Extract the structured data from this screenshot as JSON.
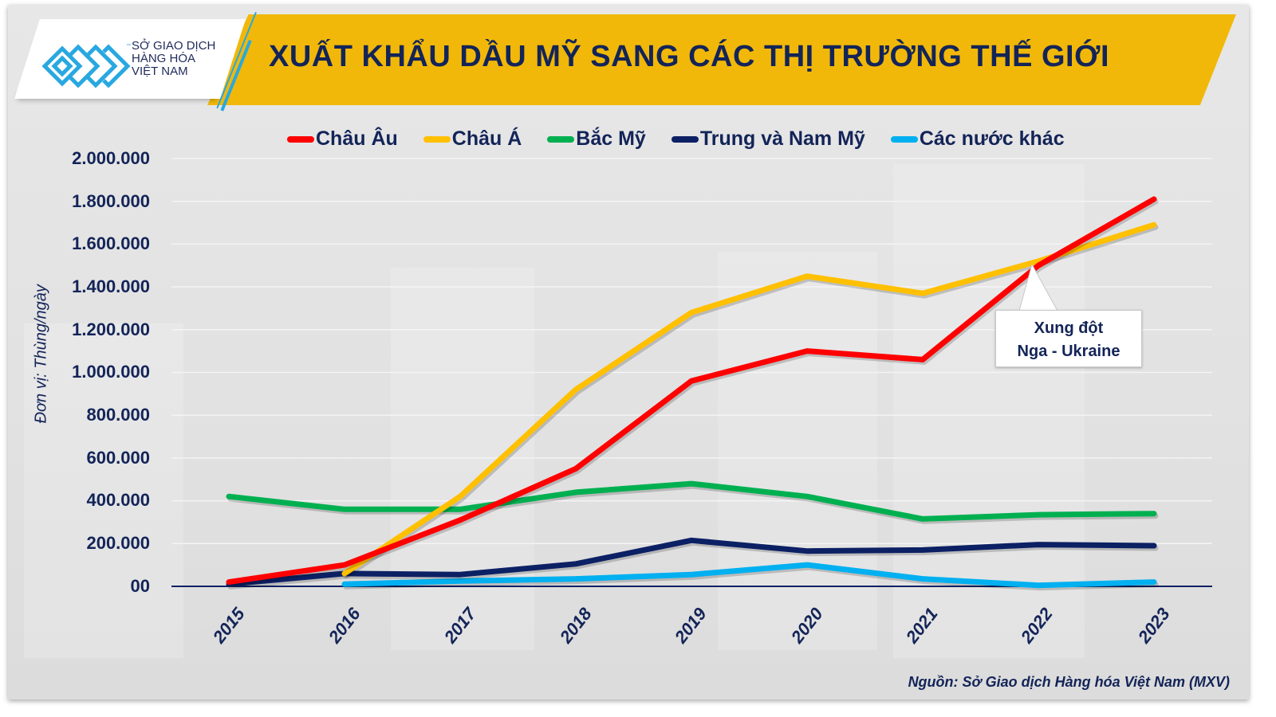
{
  "header": {
    "logo": {
      "icon": "mxv-logo-icon",
      "trademark": "™",
      "lines": [
        "SỞ GIAO DỊCH",
        "HÀNG HÓA",
        "VIỆT NAM"
      ],
      "color": "#29a8e0"
    },
    "title": "XUẤT KHẨU DẦU MỸ SANG CÁC THỊ TRƯỜNG THẾ GIỚI",
    "band_color": "#f1b809"
  },
  "legend": [
    {
      "label": "Châu Âu",
      "color": "#ff0000"
    },
    {
      "label": "Châu Á",
      "color": "#ffc000"
    },
    {
      "label": "Bắc Mỹ",
      "color": "#00b050"
    },
    {
      "label": "Trung và Nam Mỹ",
      "color": "#0c2064"
    },
    {
      "label": "Các nước khác",
      "color": "#00b0f0"
    }
  ],
  "axes": {
    "ylabel": "Đơn vị: Thùng/ngày",
    "yticks": [
      "2.000.000",
      "1.800.000",
      "1.600.000",
      "1.400.000",
      "1.200.000",
      "1.000.000",
      "800.000",
      "600.000",
      "400.000",
      "200.000",
      "00"
    ],
    "xticks": [
      "2015",
      "2016",
      "2017",
      "2018",
      "2019",
      "2020",
      "2021",
      "2022",
      "2023"
    ]
  },
  "annotation": {
    "line1": "Xung đột",
    "line2": "Nga - Ukraine",
    "points_to": "Châu Âu 2022"
  },
  "source": "Nguồn: Sở Giao dịch Hàng hóa Việt Nam (MXV)",
  "chart_data": {
    "type": "line",
    "title": "XUẤT KHẨU DẦU MỸ SANG CÁC THỊ TRƯỜNG THẾ GIỚI",
    "xlabel": "",
    "ylabel": "Đơn vị: Thùng/ngày",
    "ylim": [
      0,
      2000000
    ],
    "grid": true,
    "legend_position": "top",
    "categories": [
      "2015",
      "2016",
      "2017",
      "2018",
      "2019",
      "2020",
      "2021",
      "2022",
      "2023"
    ],
    "series": [
      {
        "name": "Châu Âu",
        "color": "#ff0000",
        "values": [
          20000,
          100000,
          310000,
          550000,
          960000,
          1100000,
          1060000,
          1500000,
          1810000
        ]
      },
      {
        "name": "Châu Á",
        "color": "#ffc000",
        "values": [
          null,
          60000,
          420000,
          920000,
          1280000,
          1450000,
          1370000,
          1520000,
          1690000
        ]
      },
      {
        "name": "Bắc Mỹ",
        "color": "#00b050",
        "values": [
          420000,
          360000,
          360000,
          440000,
          480000,
          420000,
          315000,
          335000,
          340000
        ]
      },
      {
        "name": "Trung và Nam Mỹ",
        "color": "#0c2064",
        "values": [
          10000,
          60000,
          55000,
          105000,
          215000,
          165000,
          170000,
          195000,
          190000
        ]
      },
      {
        "name": "Các nước khác",
        "color": "#00b0f0",
        "values": [
          null,
          10000,
          25000,
          35000,
          55000,
          100000,
          35000,
          5000,
          20000
        ]
      }
    ],
    "annotations": [
      {
        "text": "Xung đột Nga - Ukraine",
        "x": "2022",
        "series": "Châu Âu"
      }
    ],
    "source": "Nguồn: Sở Giao dịch Hàng hóa Việt Nam (MXV)"
  }
}
